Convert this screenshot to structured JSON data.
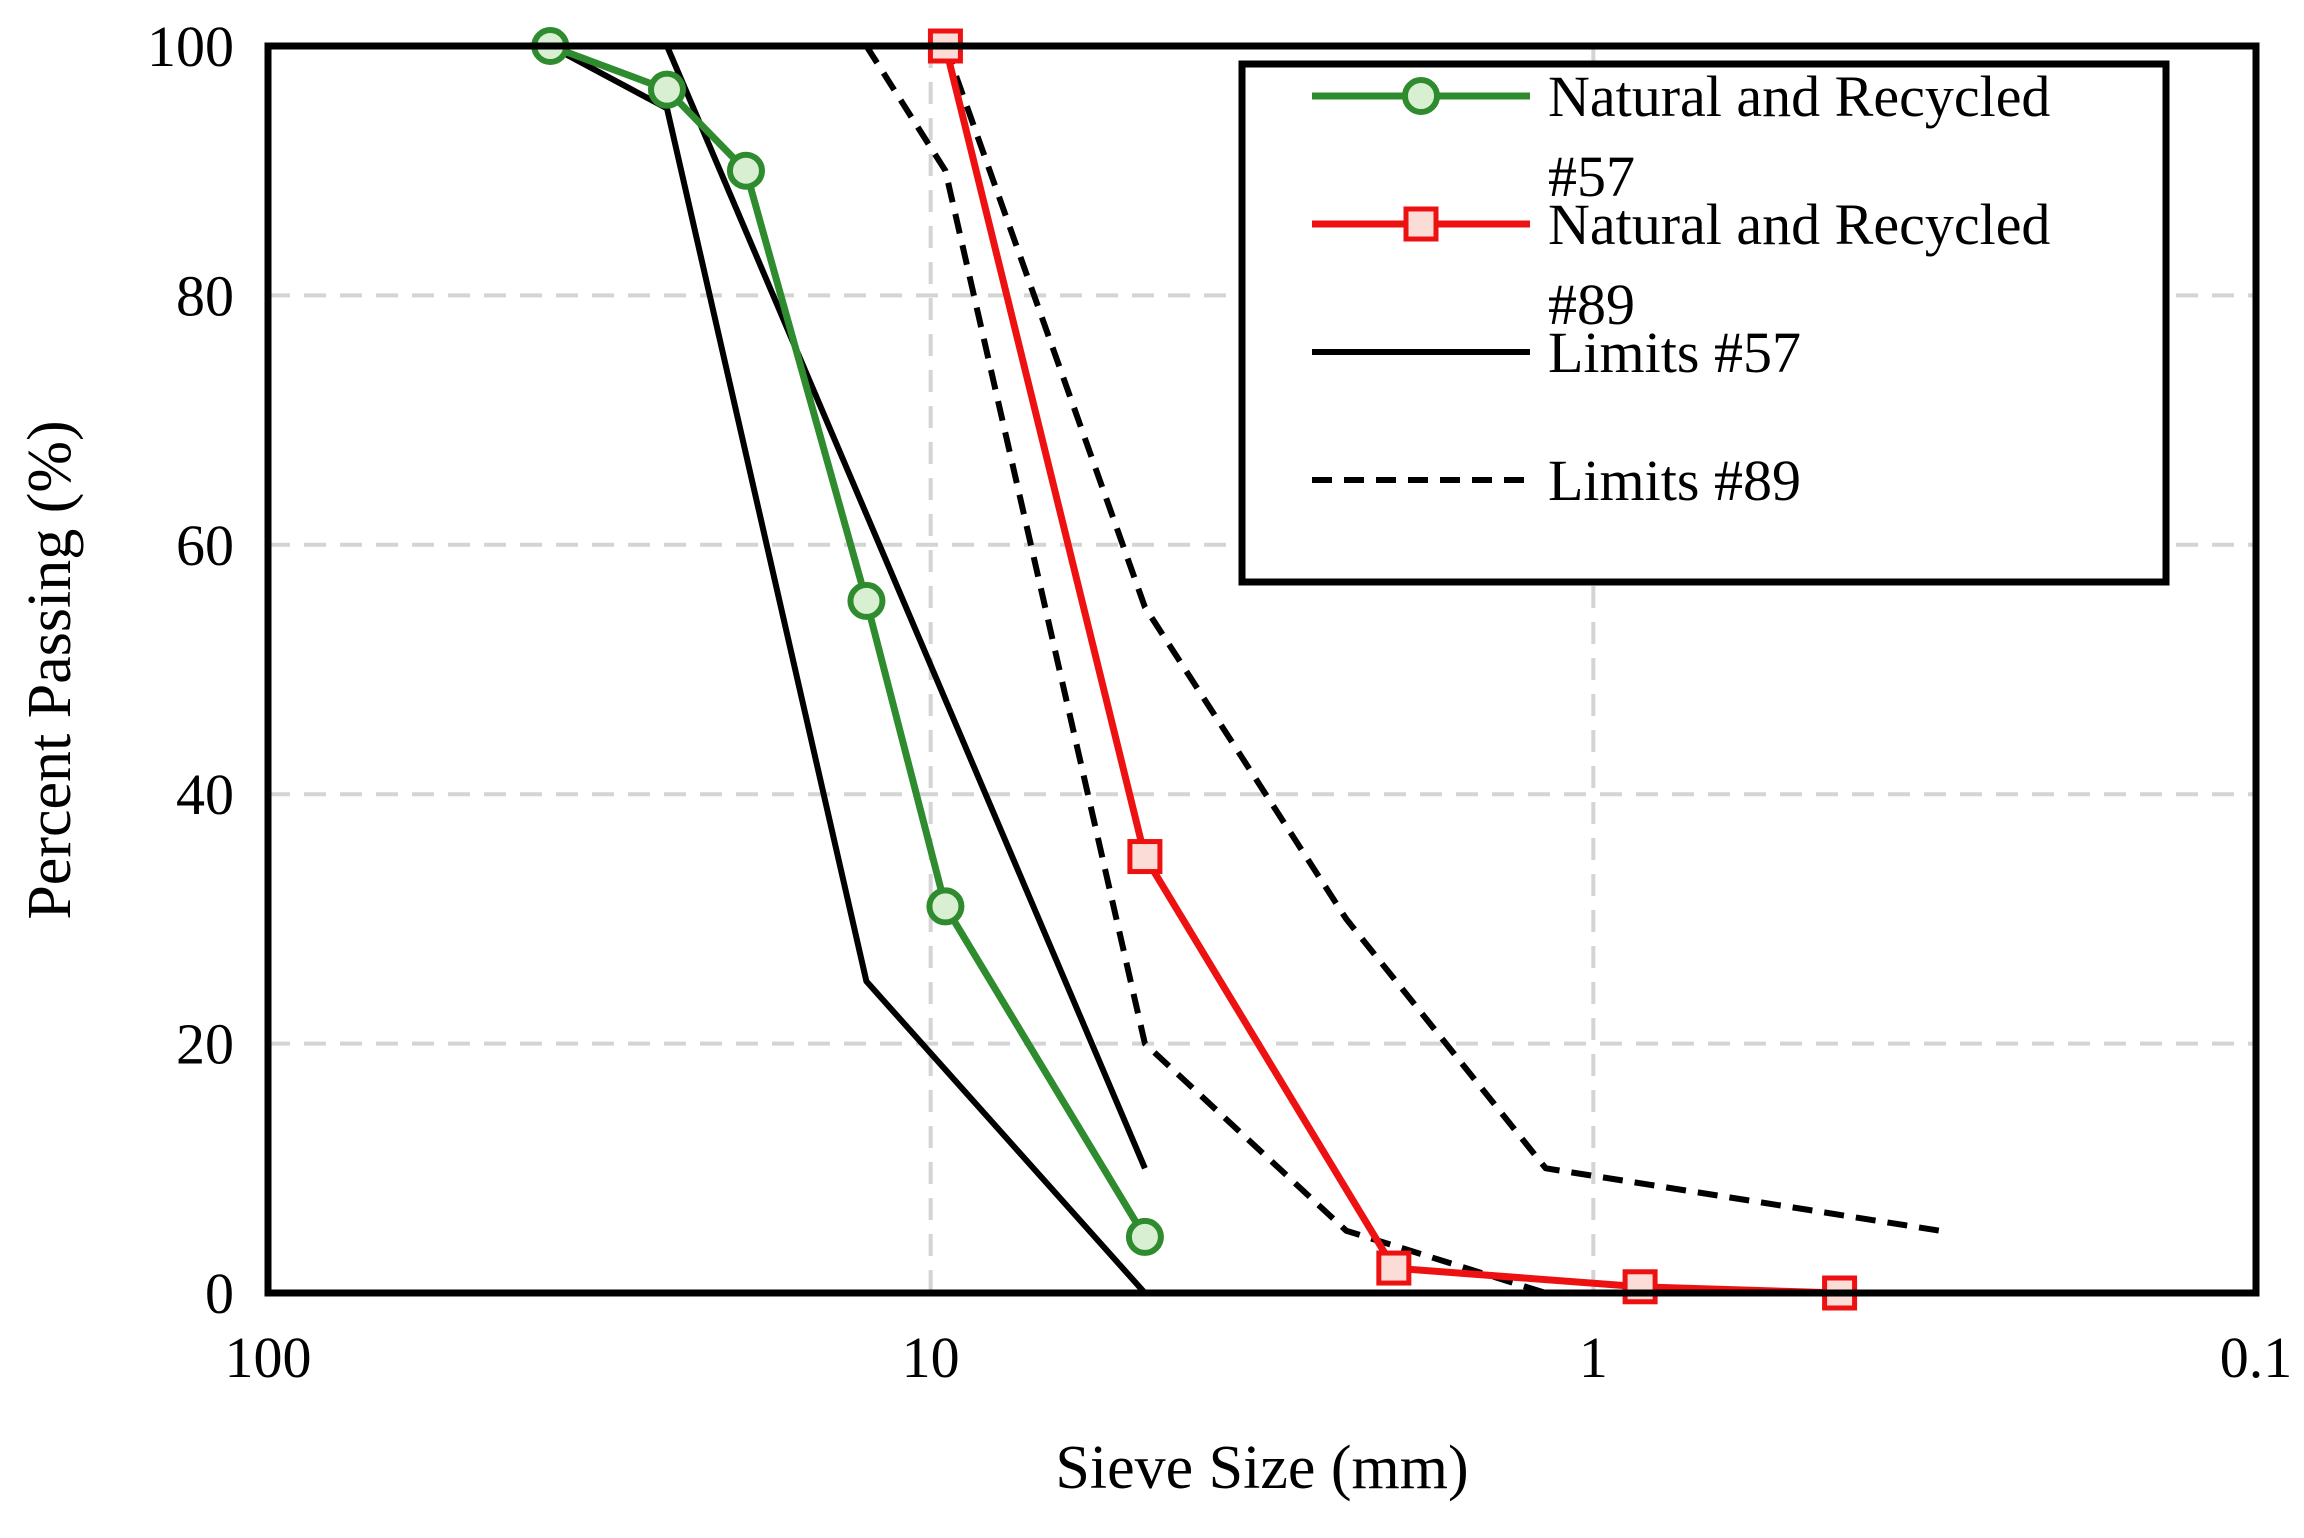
{
  "chart_data": {
    "type": "line",
    "title": "",
    "xlabel": "Sieve Size (mm)",
    "ylabel": "Percent Passing (%)",
    "x_scale": "log",
    "x_reversed": true,
    "xlim": [
      100,
      0.1
    ],
    "ylim": [
      0,
      100
    ],
    "x_ticks": [
      100,
      10,
      1,
      0.1
    ],
    "x_tick_labels": [
      "100",
      "10",
      "1",
      "0.1"
    ],
    "y_ticks": [
      0,
      20,
      40,
      60,
      80,
      100
    ],
    "y_tick_labels": [
      "0",
      "20",
      "40",
      "60",
      "80",
      "100"
    ],
    "grid": true,
    "legend_position": "top-right",
    "series": [
      {
        "name": "Natural and Recycled #57",
        "legend_lines": [
          "Natural and Recycled",
          "#57"
        ],
        "color": "#2e8b2e",
        "style": "solid",
        "marker": "circle",
        "x": [
          37.5,
          25,
          19,
          12.5,
          9.5,
          4.75
        ],
        "y": [
          100,
          96.5,
          90,
          55.5,
          31,
          4.5
        ]
      },
      {
        "name": "Natural and Recycled #89",
        "legend_lines": [
          "Natural and Recycled",
          "#89"
        ],
        "color": "#ee1111",
        "style": "solid",
        "marker": "square",
        "x": [
          9.5,
          4.75,
          2.0,
          0.85,
          0.425
        ],
        "y": [
          100,
          35,
          2,
          0.5,
          0
        ]
      },
      {
        "name": "Limits #57",
        "legend_lines": [
          "Limits #57"
        ],
        "color": "#000000",
        "style": "solid",
        "marker": "none",
        "segments": [
          {
            "x": [
              37.5,
              25,
              12.5,
              4.75
            ],
            "y": [
              100,
              95,
              25,
              0
            ]
          },
          {
            "x": [
              25,
              4.75
            ],
            "y": [
              100,
              10
            ]
          }
        ]
      },
      {
        "name": "Limits #89",
        "legend_lines": [
          "Limits #89"
        ],
        "color": "#000000",
        "style": "dashed",
        "marker": "none",
        "segments": [
          {
            "x": [
              12.5,
              9.5,
              4.75,
              2.36,
              1.18
            ],
            "y": [
              100,
              90,
              20,
              5,
              0
            ]
          },
          {
            "x": [
              9.5,
              4.75,
              2.36,
              1.18,
              0.3
            ],
            "y": [
              100,
              55,
              30,
              10,
              5
            ]
          }
        ]
      }
    ]
  }
}
